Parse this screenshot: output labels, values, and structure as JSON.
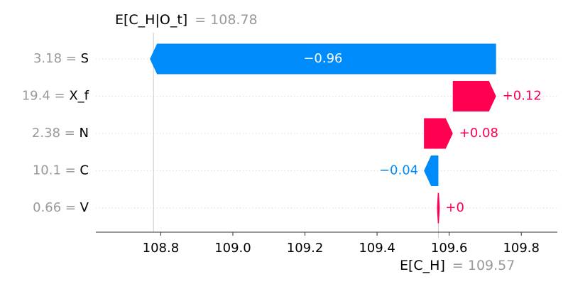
{
  "chart_data": {
    "type": "waterfall",
    "top_annotation": {
      "label": "E[C_H|O_t]",
      "value_text": "= 108.78",
      "value": 108.78
    },
    "bottom_annotation": {
      "label": "E[C_H]",
      "value_text": "= 109.57",
      "value": 109.57
    },
    "xlim": [
      108.62,
      109.9
    ],
    "xticks": [
      108.8,
      109.0,
      109.2,
      109.4,
      109.6,
      109.8
    ],
    "xtick_labels": [
      "108.8",
      "109.0",
      "109.2",
      "109.4",
      "109.6",
      "109.8"
    ],
    "features": [
      {
        "feature_value": "3.18",
        "name": "S",
        "contribution": -0.96,
        "label": "−0.96"
      },
      {
        "feature_value": "19.4",
        "name": "X_f",
        "contribution": 0.12,
        "label": "+0.12"
      },
      {
        "feature_value": "2.38",
        "name": "N",
        "contribution": 0.08,
        "label": "+0.08"
      },
      {
        "feature_value": "10.1",
        "name": "C",
        "contribution": -0.04,
        "label": "−0.04"
      },
      {
        "feature_value": "0.66",
        "name": "V",
        "contribution": 0.0,
        "label": "+0"
      }
    ],
    "colors": {
      "positive": "#ff0051",
      "negative": "#008bfb",
      "muted": "#999999"
    }
  }
}
